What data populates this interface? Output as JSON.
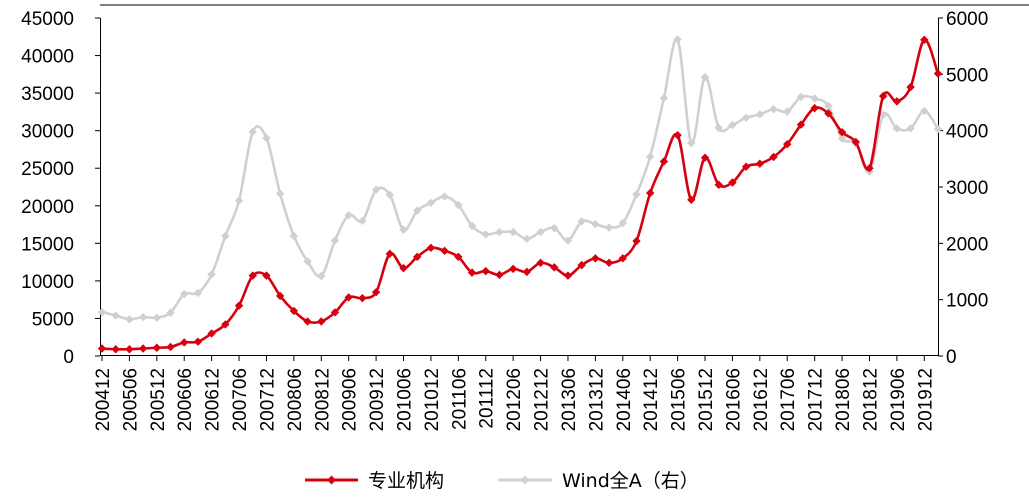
{
  "chart_data": {
    "type": "line",
    "x": [
      "200412",
      "200503",
      "200506",
      "200509",
      "200512",
      "200603",
      "200606",
      "200609",
      "200612",
      "200703",
      "200706",
      "200709",
      "200712",
      "200803",
      "200806",
      "200809",
      "200812",
      "200903",
      "200906",
      "200909",
      "200912",
      "201003",
      "201006",
      "201009",
      "201012",
      "201103",
      "201106",
      "201109",
      "201112",
      "201203",
      "201206",
      "201209",
      "201212",
      "201303",
      "201306",
      "201309",
      "201312",
      "201403",
      "201406",
      "201409",
      "201412",
      "201503",
      "201506",
      "201509",
      "201512",
      "201603",
      "201606",
      "201609",
      "201612",
      "201703",
      "201706",
      "201709",
      "201712",
      "201803",
      "201806",
      "201809",
      "201812",
      "201903",
      "201906",
      "201909",
      "201912",
      "202003"
    ],
    "x_tick_labels": [
      "200412",
      "200506",
      "200512",
      "200606",
      "200612",
      "200706",
      "200712",
      "200806",
      "200812",
      "200906",
      "200912",
      "201006",
      "201012",
      "201106",
      "201112",
      "201206",
      "201212",
      "201306",
      "201312",
      "201406",
      "201412",
      "201506",
      "201512",
      "201606",
      "201612",
      "201706",
      "201712",
      "201806",
      "201812",
      "201906",
      "201912"
    ],
    "y_left": {
      "min": 0,
      "max": 45000,
      "step": 5000,
      "ticks": [
        "0",
        "5000",
        "10000",
        "15000",
        "20000",
        "25000",
        "30000",
        "35000",
        "40000",
        "45000"
      ]
    },
    "y_right": {
      "min": 0,
      "max": 6000,
      "step": 1000,
      "ticks": [
        "0",
        "1000",
        "2000",
        "3000",
        "4000",
        "5000",
        "6000"
      ]
    },
    "series": [
      {
        "name": "专业机构",
        "axis": "left",
        "color": "#d7000f",
        "marker": "diamond",
        "values": [
          1000,
          900,
          900,
          1000,
          1100,
          1200,
          1800,
          1900,
          3000,
          4200,
          6700,
          10700,
          10700,
          8000,
          6000,
          4600,
          4600,
          5800,
          7800,
          7700,
          8500,
          13600,
          11700,
          13200,
          14400,
          14000,
          13200,
          11100,
          11300,
          10800,
          11600,
          11200,
          12400,
          11800,
          10700,
          12100,
          13000,
          12400,
          13000,
          15300,
          21700,
          25900,
          29400,
          20800,
          26400,
          22800,
          23100,
          25200,
          25600,
          26500,
          28200,
          30800,
          33000,
          32300,
          29800,
          28500,
          25000,
          34600,
          33900,
          35800,
          42100,
          37600
        ]
      },
      {
        "name": "Wind全A（右）",
        "axis": "right",
        "color": "#d0d0d0",
        "marker": "diamond",
        "values": [
          780,
          720,
          650,
          690,
          680,
          770,
          1100,
          1120,
          1450,
          2130,
          2760,
          3980,
          3870,
          2880,
          2130,
          1680,
          1420,
          2050,
          2500,
          2400,
          2950,
          2860,
          2240,
          2580,
          2720,
          2830,
          2680,
          2310,
          2160,
          2200,
          2200,
          2080,
          2200,
          2270,
          2050,
          2390,
          2340,
          2280,
          2360,
          2870,
          3540,
          4580,
          5620,
          3780,
          4950,
          4050,
          4100,
          4230,
          4290,
          4380,
          4340,
          4600,
          4570,
          4440,
          3860,
          3770,
          3270,
          4280,
          4040,
          4040,
          4350,
          4030
        ]
      }
    ],
    "legend": {
      "position": "bottom",
      "entries": [
        "专业机构",
        "Wind全A（右）"
      ]
    },
    "grid": false
  }
}
